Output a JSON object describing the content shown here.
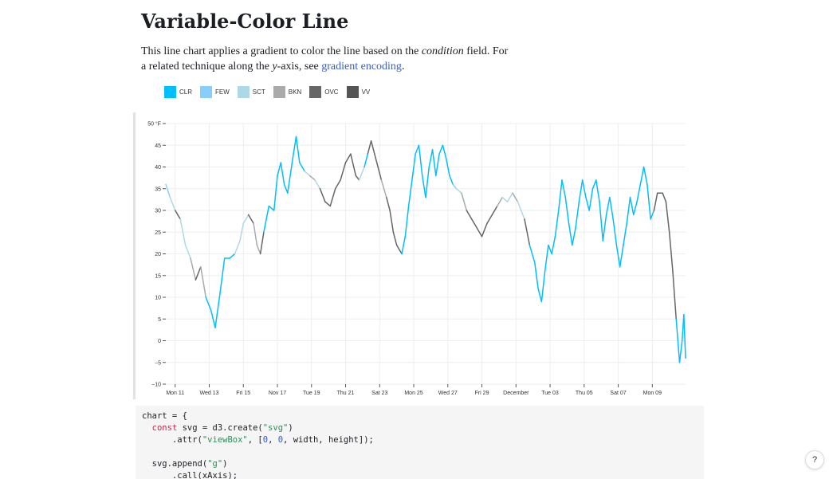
{
  "page": {
    "title": "Variable-Color Line",
    "intro_before": "This line chart applies a gradient to color the line based on the ",
    "intro_em1": "condition",
    "intro_mid": " field. For a related technique along the ",
    "intro_em2": "y",
    "intro_mid2": "-axis, see ",
    "intro_link": "gradient encoding",
    "intro_end": "."
  },
  "legend": [
    {
      "label": "CLR",
      "color": "#00bfff"
    },
    {
      "label": "FEW",
      "color": "#87cefa"
    },
    {
      "label": "SCT",
      "color": "#add8e6"
    },
    {
      "label": "BKN",
      "color": "#aaaaaa"
    },
    {
      "label": "OVC",
      "color": "#666666"
    },
    {
      "label": "VV",
      "color": "#555555"
    }
  ],
  "chart_data": {
    "type": "line",
    "ylabel": "°F",
    "ylim": [
      -10,
      50
    ],
    "yticks": [
      -10,
      -5,
      0,
      5,
      10,
      15,
      20,
      25,
      30,
      35,
      40,
      45,
      50
    ],
    "grid": true,
    "legend_placement": "top-left",
    "x_ticks": [
      {
        "day": 0,
        "label": "Mon 11"
      },
      {
        "day": 2,
        "label": "Wed 13"
      },
      {
        "day": 4,
        "label": "Fri 15"
      },
      {
        "day": 6,
        "label": "Nov 17"
      },
      {
        "day": 8,
        "label": "Tue 19"
      },
      {
        "day": 10,
        "label": "Thu 21"
      },
      {
        "day": 12,
        "label": "Sat 23"
      },
      {
        "day": 14,
        "label": "Mon 25"
      },
      {
        "day": 16,
        "label": "Wed 27"
      },
      {
        "day": 18,
        "label": "Fri 29"
      },
      {
        "day": 20,
        "label": "December"
      },
      {
        "day": 22,
        "label": "Tue 03"
      },
      {
        "day": 24,
        "label": "Thu 05"
      },
      {
        "day": 26,
        "label": "Sat 07"
      },
      {
        "day": 28,
        "label": "Mon 09"
      }
    ],
    "x_domain": [
      -0.55,
      29.95
    ],
    "series": [
      {
        "points": [
          [
            -0.55,
            36,
            "FEW"
          ],
          [
            -0.3,
            33,
            "SCT"
          ],
          [
            0,
            30,
            "OVC"
          ],
          [
            0.3,
            28,
            "SCT"
          ],
          [
            0.6,
            22,
            "SCT"
          ],
          [
            0.9,
            19,
            "BKN"
          ],
          [
            1.2,
            14,
            "OVC"
          ],
          [
            1.5,
            17,
            "BKN"
          ],
          [
            1.8,
            10,
            "CLR"
          ],
          [
            2.1,
            7,
            "CLR"
          ],
          [
            2.35,
            3,
            "CLR"
          ],
          [
            2.6,
            10,
            "CLR"
          ],
          [
            2.9,
            19,
            "CLR"
          ],
          [
            3.2,
            19,
            "CLR"
          ],
          [
            3.5,
            20,
            "SCT"
          ],
          [
            3.8,
            23,
            "SCT"
          ],
          [
            4.0,
            27,
            "SCT"
          ],
          [
            4.3,
            29,
            "OVC"
          ],
          [
            4.6,
            27,
            "BKN"
          ],
          [
            4.8,
            22,
            "BKN"
          ],
          [
            5.0,
            20,
            "OVC"
          ],
          [
            5.2,
            25,
            "CLR"
          ],
          [
            5.5,
            31,
            "CLR"
          ],
          [
            5.8,
            30,
            "CLR"
          ],
          [
            6.0,
            38,
            "CLR"
          ],
          [
            6.2,
            41,
            "CLR"
          ],
          [
            6.4,
            36,
            "CLR"
          ],
          [
            6.6,
            34,
            "CLR"
          ],
          [
            6.9,
            42,
            "CLR"
          ],
          [
            7.1,
            47,
            "CLR"
          ],
          [
            7.3,
            41,
            "CLR"
          ],
          [
            7.6,
            39,
            "SCT"
          ],
          [
            7.9,
            38,
            "BKN"
          ],
          [
            8.2,
            37,
            "SCT"
          ],
          [
            8.5,
            35,
            "OVC"
          ],
          [
            8.8,
            32,
            "OVC"
          ],
          [
            9.1,
            31,
            "OVC"
          ],
          [
            9.4,
            35,
            "OVC"
          ],
          [
            9.7,
            37,
            "OVC"
          ],
          [
            10.0,
            41,
            "OVC"
          ],
          [
            10.3,
            43,
            "OVC"
          ],
          [
            10.6,
            38,
            "OVC"
          ],
          [
            10.8,
            37,
            "SCT"
          ],
          [
            11.1,
            40,
            "CLR"
          ],
          [
            11.3,
            43,
            "OVC"
          ],
          [
            11.5,
            46,
            "OVC"
          ],
          [
            11.7,
            43,
            "OVC"
          ],
          [
            11.9,
            40,
            "OVC"
          ],
          [
            12.1,
            37,
            "BKN"
          ],
          [
            12.4,
            33,
            "OVC"
          ],
          [
            12.6,
            30,
            "OVC"
          ],
          [
            12.8,
            25,
            "OVC"
          ],
          [
            13.0,
            22,
            "OVC"
          ],
          [
            13.3,
            20,
            "CLR"
          ],
          [
            13.5,
            24,
            "CLR"
          ],
          [
            13.7,
            31,
            "CLR"
          ],
          [
            13.9,
            37,
            "CLR"
          ],
          [
            14.1,
            43,
            "CLR"
          ],
          [
            14.3,
            45,
            "CLR"
          ],
          [
            14.5,
            38,
            "CLR"
          ],
          [
            14.7,
            33,
            "CLR"
          ],
          [
            14.9,
            40,
            "CLR"
          ],
          [
            15.1,
            44,
            "CLR"
          ],
          [
            15.3,
            38,
            "CLR"
          ],
          [
            15.5,
            43,
            "CLR"
          ],
          [
            15.7,
            45,
            "CLR"
          ],
          [
            15.9,
            42,
            "CLR"
          ],
          [
            16.1,
            38,
            "CLR"
          ],
          [
            16.3,
            36,
            "FEW"
          ],
          [
            16.5,
            35,
            "SCT"
          ],
          [
            16.8,
            34,
            "BKN"
          ],
          [
            17.1,
            30,
            "OVC"
          ],
          [
            17.4,
            28,
            "OVC"
          ],
          [
            17.7,
            26,
            "OVC"
          ],
          [
            18.0,
            24,
            "OVC"
          ],
          [
            18.3,
            27,
            "OVC"
          ],
          [
            18.6,
            29,
            "OVC"
          ],
          [
            18.9,
            31,
            "BKN"
          ],
          [
            19.2,
            33,
            "SCT"
          ],
          [
            19.5,
            32,
            "SCT"
          ],
          [
            19.8,
            34,
            "BKN"
          ],
          [
            20.1,
            32,
            "SCT"
          ],
          [
            20.3,
            30,
            "SCT"
          ],
          [
            20.5,
            28,
            "OVC"
          ],
          [
            20.8,
            22,
            "CLR"
          ],
          [
            21.1,
            18,
            "CLR"
          ],
          [
            21.3,
            12,
            "CLR"
          ],
          [
            21.5,
            9,
            "CLR"
          ],
          [
            21.7,
            16,
            "CLR"
          ],
          [
            21.9,
            22,
            "CLR"
          ],
          [
            22.1,
            20,
            "CLR"
          ],
          [
            22.3,
            24,
            "CLR"
          ],
          [
            22.5,
            30,
            "CLR"
          ],
          [
            22.7,
            37,
            "CLR"
          ],
          [
            22.9,
            33,
            "CLR"
          ],
          [
            23.1,
            27,
            "CLR"
          ],
          [
            23.3,
            22,
            "CLR"
          ],
          [
            23.5,
            26,
            "CLR"
          ],
          [
            23.7,
            32,
            "CLR"
          ],
          [
            23.9,
            37,
            "CLR"
          ],
          [
            24.1,
            33,
            "CLR"
          ],
          [
            24.3,
            30,
            "CLR"
          ],
          [
            24.5,
            35,
            "CLR"
          ],
          [
            24.7,
            37,
            "CLR"
          ],
          [
            24.9,
            32,
            "CLR"
          ],
          [
            25.1,
            23,
            "CLR"
          ],
          [
            25.3,
            29,
            "CLR"
          ],
          [
            25.5,
            33,
            "CLR"
          ],
          [
            25.7,
            28,
            "CLR"
          ],
          [
            25.9,
            22,
            "CLR"
          ],
          [
            26.1,
            17,
            "CLR"
          ],
          [
            26.3,
            22,
            "CLR"
          ],
          [
            26.5,
            27,
            "CLR"
          ],
          [
            26.7,
            33,
            "CLR"
          ],
          [
            26.9,
            29,
            "CLR"
          ],
          [
            27.1,
            32,
            "CLR"
          ],
          [
            27.3,
            36,
            "CLR"
          ],
          [
            27.5,
            40,
            "CLR"
          ],
          [
            27.7,
            36,
            "CLR"
          ],
          [
            27.9,
            28,
            "CLR"
          ],
          [
            28.1,
            30,
            "OVC"
          ],
          [
            28.3,
            34,
            "OVC"
          ],
          [
            28.6,
            34,
            "OVC"
          ],
          [
            28.8,
            32,
            "OVC"
          ],
          [
            29.0,
            25,
            "OVC"
          ],
          [
            29.2,
            16,
            "OVC"
          ],
          [
            29.4,
            5,
            "CLR"
          ],
          [
            29.6,
            -5,
            "CLR"
          ],
          [
            29.75,
            0,
            "CLR"
          ],
          [
            29.85,
            6,
            "CLR"
          ],
          [
            29.95,
            -4,
            "CLR"
          ]
        ]
      }
    ]
  },
  "code": {
    "lines": [
      "chart = {",
      "  const svg = d3.create(\"svg\")",
      "      .attr(\"viewBox\", [0, 0, width, height]);",
      "",
      "  svg.append(\"g\")",
      "      .call(xAxis);"
    ]
  },
  "help": {
    "label": "?"
  }
}
